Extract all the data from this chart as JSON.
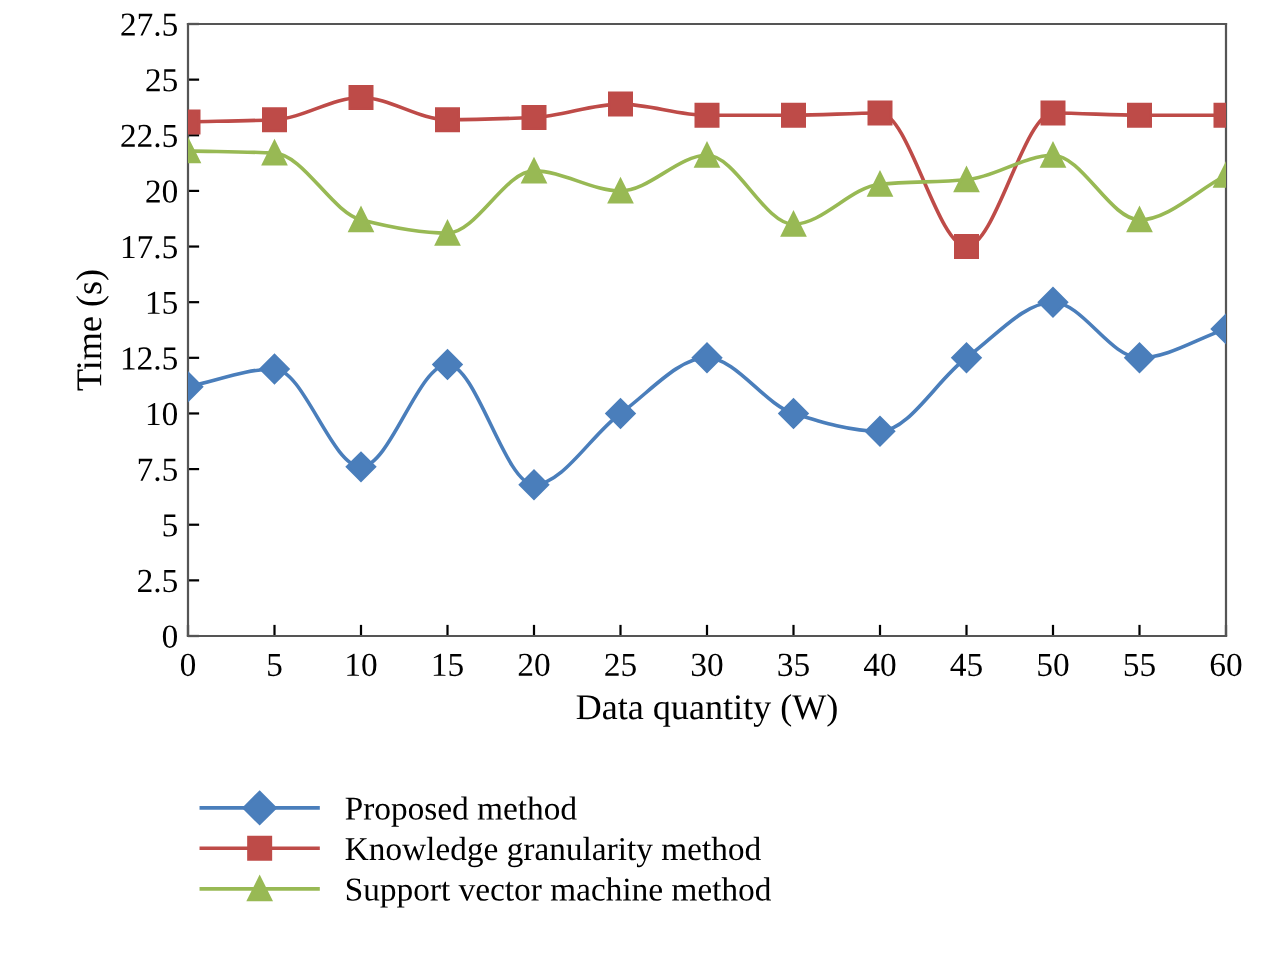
{
  "chart_data": {
    "type": "line",
    "xlabel": "Data quantity (W)",
    "ylabel": "Time (s)",
    "x": [
      0,
      5,
      10,
      15,
      20,
      25,
      30,
      35,
      40,
      45,
      50,
      55,
      60
    ],
    "series": [
      {
        "name": "Proposed method",
        "color": "#4a7ebb",
        "marker": "diamond",
        "values": [
          11.2,
          12,
          7.6,
          12.2,
          6.8,
          10,
          12.5,
          10,
          9.2,
          12.5,
          15,
          12.5,
          13.8
        ]
      },
      {
        "name": "Knowledge granularity method",
        "color": "#be4b48",
        "marker": "square",
        "values": [
          23.1,
          23.2,
          24.2,
          23.2,
          23.3,
          23.9,
          23.4,
          23.4,
          23.5,
          17.5,
          23.5,
          23.4,
          23.4
        ]
      },
      {
        "name": "Support vector machine method",
        "color": "#98b954",
        "marker": "triangle",
        "values": [
          21.8,
          21.7,
          18.7,
          18.1,
          20.9,
          20.0,
          21.6,
          18.5,
          20.3,
          20.5,
          21.6,
          18.7,
          20.7
        ]
      }
    ],
    "xlim": [
      0,
      60
    ],
    "xticks": [
      0,
      5,
      10,
      15,
      20,
      25,
      30,
      35,
      40,
      45,
      50,
      55,
      60
    ],
    "ylim": [
      0,
      27.5
    ],
    "yticks": [
      0,
      2.5,
      5,
      7.5,
      10,
      12.5,
      15,
      17.5,
      20,
      22.5,
      25,
      27.5
    ],
    "grid": false,
    "legend": "bottom",
    "line_style": "solid"
  }
}
